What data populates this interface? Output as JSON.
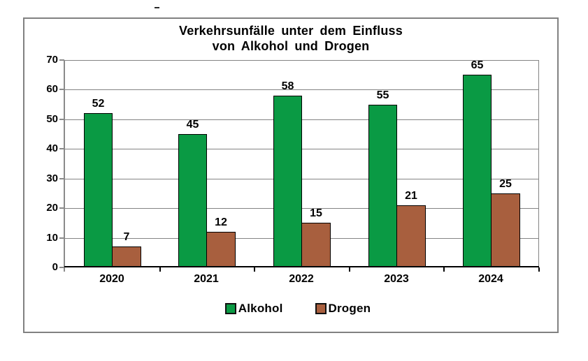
{
  "decoration": {
    "stray_mark": "-"
  },
  "chart_data": {
    "type": "bar",
    "title_lines": [
      "Verkehrsunfälle unter dem Einfluss",
      "von Alkohol und Drogen"
    ],
    "categories": [
      "2020",
      "2021",
      "2022",
      "2023",
      "2024"
    ],
    "series": [
      {
        "name": "Alkohol",
        "color": "#0a9a44",
        "values": [
          52,
          45,
          58,
          55,
          65
        ]
      },
      {
        "name": "Drogen",
        "color": "#a85f3e",
        "values": [
          7,
          12,
          15,
          21,
          25
        ]
      }
    ],
    "ylim": [
      0,
      70
    ],
    "ytick_step": 10,
    "ytick_labels": [
      "0",
      "10",
      "20",
      "30",
      "40",
      "50",
      "60",
      "70"
    ],
    "grid": true,
    "value_labels_shown": true,
    "legend": {
      "position": "bottom",
      "entries": [
        "Alkohol",
        "Drogen"
      ]
    }
  },
  "colors": {
    "background": "#ffffff",
    "frame_border": "#818181",
    "gridline": "#848484",
    "x_axis": "#000000",
    "bar_border": "#000000",
    "alkohol_green": "#0a9a44",
    "drogen_brown": "#a85f3e",
    "text": "#000000"
  }
}
